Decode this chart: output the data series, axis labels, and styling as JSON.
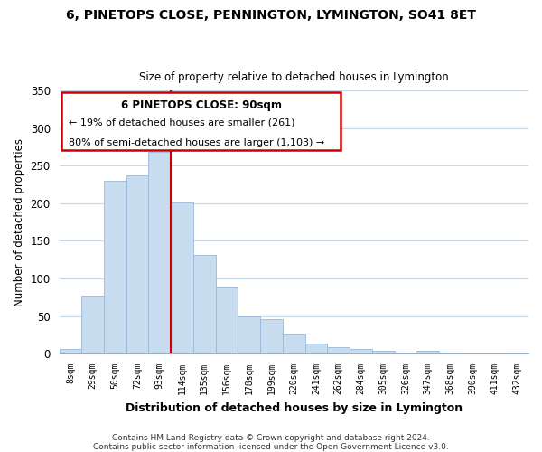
{
  "title": "6, PINETOPS CLOSE, PENNINGTON, LYMINGTON, SO41 8ET",
  "subtitle": "Size of property relative to detached houses in Lymington",
  "xlabel": "Distribution of detached houses by size in Lymington",
  "ylabel": "Number of detached properties",
  "bar_color": "#c8dcf0",
  "bar_edge_color": "#9ab8d8",
  "bar_labels": [
    "8sqm",
    "29sqm",
    "50sqm",
    "72sqm",
    "93sqm",
    "114sqm",
    "135sqm",
    "156sqm",
    "178sqm",
    "199sqm",
    "220sqm",
    "241sqm",
    "262sqm",
    "284sqm",
    "305sqm",
    "326sqm",
    "347sqm",
    "368sqm",
    "390sqm",
    "411sqm",
    "432sqm"
  ],
  "bar_heights": [
    6,
    77,
    230,
    237,
    268,
    201,
    131,
    88,
    50,
    46,
    25,
    13,
    9,
    6,
    4,
    1,
    4,
    1,
    0,
    0,
    1
  ],
  "ylim": [
    0,
    350
  ],
  "red_line_index": 4,
  "annotation_title": "6 PINETOPS CLOSE: 90sqm",
  "annotation_line1": "← 19% of detached houses are smaller (261)",
  "annotation_line2": "80% of semi-detached houses are larger (1,103) →",
  "footer_line1": "Contains HM Land Registry data © Crown copyright and database right 2024.",
  "footer_line2": "Contains public sector information licensed under the Open Government Licence v3.0.",
  "background_color": "#ffffff",
  "grid_color": "#c8d8e8",
  "red_line_color": "#cc0000"
}
